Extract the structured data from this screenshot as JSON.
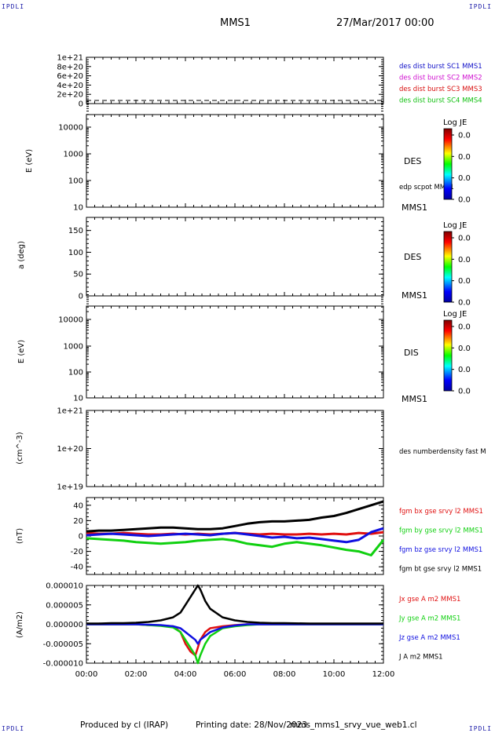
{
  "page": {
    "corner_tag": "IPDLI",
    "spacecraft": "MMS1",
    "date": "27/Mar/2017 00:00",
    "footer_producer": "Produced by cl (IRAP)",
    "footer_printing": "Printing date: 28/Nov/2023",
    "footer_file": "mms_mms1_srvy_vue_web1.cl"
  },
  "colors": {
    "mms1": "#1010c8",
    "mms2": "#d010d0",
    "mms3": "#d81010",
    "mms4": "#10c010",
    "bx": "#e01010",
    "by": "#10d010",
    "bz": "#1010e0",
    "bt": "#000000"
  },
  "chart_data": [
    {
      "type": "line",
      "id": "dist",
      "ylabel": "",
      "ylim": [
        0,
        1e+21
      ],
      "yticks": [
        "1e+21",
        "8e+20",
        "6e+20",
        "4e+20",
        "2e+20",
        "0"
      ],
      "legend": [
        "des dist burst SC1 MMS1",
        "des dist burst SC2 MMS2",
        "des dist burst SC3 MMS3",
        "des dist burst SC4 MMS4"
      ],
      "series": []
    },
    {
      "type": "heatmap",
      "id": "des_e",
      "ylabel": "E (eV)",
      "scale": "log",
      "yticks": [
        "10000",
        "1000",
        "100",
        "10"
      ],
      "instrument": "DES",
      "extra_label": "edp scpot MMS1",
      "sc_label": "MMS1",
      "colorbar_title": "Log JE",
      "colorbar_ticks": [
        "0.0",
        "0.0",
        "0.0",
        "0.0"
      ]
    },
    {
      "type": "heatmap",
      "id": "des_pa",
      "ylabel": "a (deg)",
      "ylim": [
        0,
        180
      ],
      "yticks": [
        "150",
        "100",
        "50",
        "0"
      ],
      "instrument": "DES",
      "sc_label": "MMS1",
      "colorbar_title": "Log JE",
      "colorbar_ticks": [
        "0.0",
        "0.0",
        "0.0",
        "0.0"
      ]
    },
    {
      "type": "heatmap",
      "id": "dis_e",
      "ylabel": "E (eV)",
      "scale": "log",
      "yticks": [
        "10000",
        "1000",
        "100",
        "10"
      ],
      "instrument": "DIS",
      "sc_label": "MMS1",
      "colorbar_title": "Log JE",
      "colorbar_ticks": [
        "0.0",
        "0.0",
        "0.0",
        "0.0"
      ]
    },
    {
      "type": "line",
      "id": "density",
      "ylabel": "(cm^-3)",
      "scale": "log",
      "ylim": [
        1e+19,
        1e+21
      ],
      "yticks": [
        "1e+21",
        "1e+20",
        "1e+19"
      ],
      "legend": [
        "des numberdensity fast M"
      ],
      "series": []
    },
    {
      "type": "line",
      "id": "fgm",
      "ylabel": "(nT)",
      "ylim": [
        -50,
        50
      ],
      "yticks": [
        "40",
        "20",
        "0",
        "-20",
        "-40"
      ],
      "legend": [
        "fgm bx gse srvy l2 MMS1",
        "fgm by gse srvy l2 MMS1",
        "fgm bz gse srvy l2 MMS1",
        "fgm bt gse srvy l2 MMS1"
      ],
      "x_hours": [
        0,
        0.5,
        1,
        1.5,
        2,
        2.5,
        3,
        3.5,
        4,
        4.5,
        5,
        5.5,
        6,
        6.5,
        7,
        7.5,
        8,
        8.5,
        9,
        9.5,
        10,
        10.5,
        11,
        11.5,
        12
      ],
      "series": [
        {
          "name": "bx",
          "values": [
            4,
            3,
            3,
            4,
            3,
            2,
            2,
            3,
            2,
            3,
            2,
            3,
            4,
            3,
            2,
            3,
            2,
            2,
            3,
            2,
            3,
            2,
            4,
            3,
            5
          ]
        },
        {
          "name": "by",
          "values": [
            -3,
            -4,
            -5,
            -6,
            -8,
            -9,
            -10,
            -9,
            -8,
            -6,
            -5,
            -4,
            -6,
            -10,
            -12,
            -14,
            -10,
            -8,
            -10,
            -12,
            -15,
            -18,
            -20,
            -25,
            -5
          ]
        },
        {
          "name": "bz",
          "values": [
            1,
            2,
            3,
            2,
            1,
            0,
            1,
            2,
            3,
            2,
            1,
            3,
            4,
            2,
            0,
            -2,
            -1,
            -3,
            -2,
            -4,
            -6,
            -8,
            -5,
            5,
            10
          ]
        },
        {
          "name": "bt",
          "values": [
            6,
            7,
            7,
            8,
            9,
            10,
            11,
            11,
            10,
            9,
            9,
            10,
            13,
            16,
            18,
            19,
            19,
            20,
            21,
            24,
            26,
            30,
            35,
            40,
            45
          ]
        }
      ]
    },
    {
      "type": "line",
      "id": "current",
      "ylabel": "(A/m2)",
      "ylim": [
        -1e-05,
        1e-05
      ],
      "yticks": [
        "0.000010",
        "0.000005",
        "0.000000",
        "-0.000005",
        "-0.000010"
      ],
      "legend": [
        "Jx gse A m2 MMS1",
        "Jy gse A m2 MMS1",
        "Jz gse A m2 MMS1",
        "J A m2 MMS1"
      ],
      "x_hours": [
        0,
        0.5,
        1,
        1.5,
        2,
        2.5,
        3,
        3.5,
        3.8,
        4.0,
        4.2,
        4.4,
        4.5,
        4.6,
        4.8,
        5.0,
        5.5,
        6,
        6.5,
        7,
        7.5,
        8,
        9,
        10,
        11,
        12
      ],
      "series": [
        {
          "name": "Jx",
          "values": [
            0,
            0,
            0,
            0,
            0,
            -2e-07,
            -3e-07,
            -5e-07,
            -2e-06,
            -5e-06,
            -7e-06,
            -8e-06,
            -6e-06,
            -4e-06,
            -2e-06,
            -1e-06,
            -5e-07,
            -2e-07,
            0,
            0,
            0,
            0,
            0,
            0,
            0,
            0
          ]
        },
        {
          "name": "Jy",
          "values": [
            0,
            0,
            0,
            0,
            0,
            -2e-07,
            -4e-07,
            -8e-07,
            -2e-06,
            -4e-06,
            -6e-06,
            -8e-06,
            -1e-05,
            -8e-06,
            -5e-06,
            -3e-06,
            -1e-06,
            -5e-07,
            -2e-07,
            0,
            0,
            0,
            0,
            0,
            0,
            0
          ]
        },
        {
          "name": "Jz",
          "values": [
            0,
            0,
            0,
            0,
            0,
            -1e-07,
            -2e-07,
            -5e-07,
            -1e-06,
            -2e-06,
            -3e-06,
            -4e-06,
            -5e-06,
            -4e-06,
            -3e-06,
            -2e-06,
            -8e-07,
            -3e-07,
            0,
            0,
            0,
            0,
            0,
            0,
            0,
            0
          ]
        },
        {
          "name": "J",
          "values": [
            2e-07,
            2e-07,
            3e-07,
            3e-07,
            4e-07,
            6e-07,
            1e-06,
            1.8e-06,
            3e-06,
            5e-06,
            7e-06,
            9e-06,
            1e-05,
            9e-06,
            6e-06,
            4e-06,
            1.8e-06,
            1e-06,
            6e-07,
            4e-07,
            3e-07,
            3e-07,
            2e-07,
            2e-07,
            2e-07,
            2e-07
          ]
        }
      ]
    }
  ],
  "x_axis": {
    "range_hours": [
      0,
      12
    ],
    "ticks": [
      "00:00",
      "02:00",
      "04:00",
      "06:00",
      "08:00",
      "10:00",
      "12:00"
    ]
  }
}
